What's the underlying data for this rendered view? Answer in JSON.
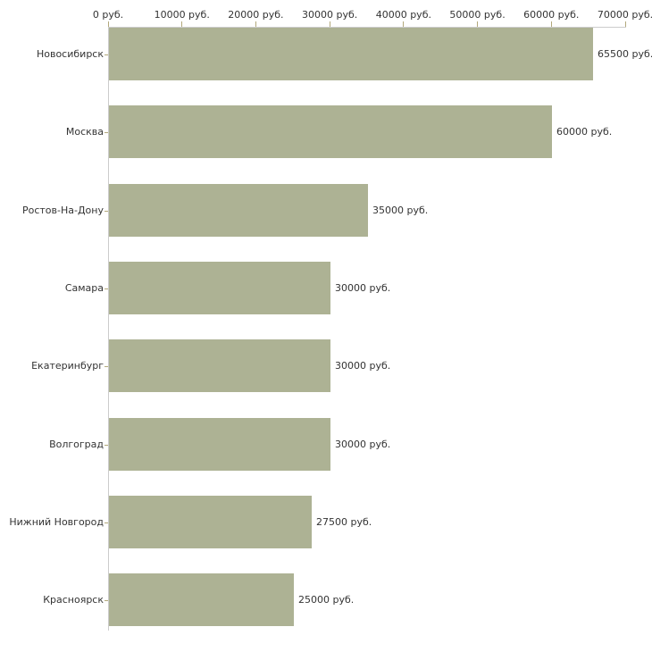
{
  "chart_data": {
    "type": "bar",
    "orientation": "horizontal",
    "title": "",
    "xlabel": "",
    "ylabel": "",
    "xlim": [
      0,
      70000
    ],
    "grid": false,
    "legend_position": "none",
    "x_ticks": [
      {
        "value": 0,
        "label": "0 руб."
      },
      {
        "value": 10000,
        "label": "10000 руб."
      },
      {
        "value": 20000,
        "label": "20000 руб."
      },
      {
        "value": 30000,
        "label": "30000 руб."
      },
      {
        "value": 40000,
        "label": "40000 руб."
      },
      {
        "value": 50000,
        "label": "50000 руб."
      },
      {
        "value": 60000,
        "label": "60000 руб."
      },
      {
        "value": 70000,
        "label": "70000 руб."
      }
    ],
    "categories": [
      "Новосибирск",
      "Москва",
      "Ростов-На-Дону",
      "Самара",
      "Екатеринбург",
      "Волгоград",
      "Нижний Новгород",
      "Красноярск"
    ],
    "values": [
      65500,
      60000,
      35000,
      30000,
      30000,
      30000,
      27500,
      25000
    ],
    "value_labels": [
      "65500 руб.",
      "60000 руб.",
      "35000 руб.",
      "30000 руб.",
      "30000 руб.",
      "30000 руб.",
      "27500 руб.",
      "25000 руб."
    ],
    "colors": {
      "bar": "#adb294",
      "axis_line": "#cccccc",
      "tick": "#b3a97c",
      "text": "#333333",
      "background": "#ffffff"
    }
  }
}
